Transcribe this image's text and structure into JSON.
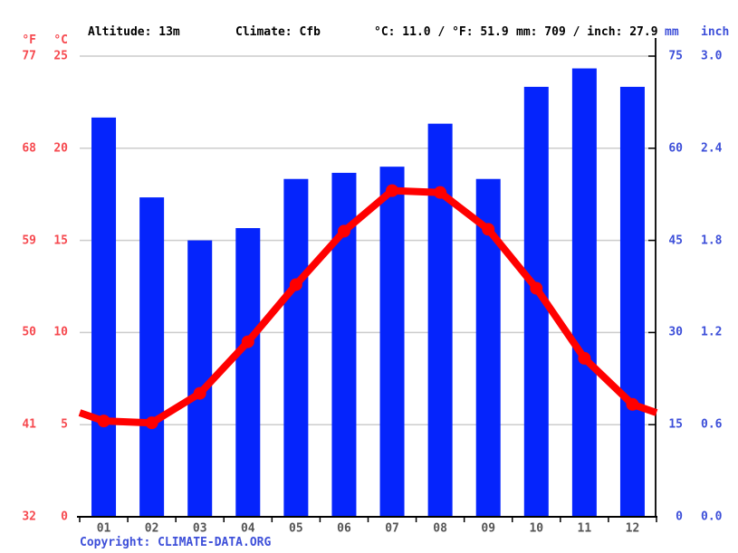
{
  "header": {
    "f_unit": "°F",
    "c_unit": "°C",
    "altitude": "Altitude: 13m",
    "climate": "Climate: Cfb",
    "temp_summary": "°C: 11.0 / °F: 51.9",
    "precip_summary": "mm: 709 / inch: 27.9",
    "mm_unit": "mm",
    "inch_unit": "inch"
  },
  "axes": {
    "left_f_ticks": [
      "77",
      "68",
      "59",
      "50",
      "41",
      "32"
    ],
    "left_c_ticks": [
      "25",
      "20",
      "15",
      "10",
      "5",
      "0"
    ],
    "right_mm_ticks": [
      "75",
      "60",
      "45",
      "30",
      "15",
      "0"
    ],
    "right_inch_ticks": [
      "3.0",
      "2.4",
      "1.8",
      "1.2",
      "0.6",
      "0.0"
    ]
  },
  "footer": {
    "copyright": "Copyright: CLIMATE-DATA.ORG"
  },
  "colors": {
    "bar_blue": "#0524fc",
    "line_red": "#ff0000",
    "red_label": "#f6494f",
    "blue_label": "#3d4fd9",
    "grid": "#cccccc",
    "axis": "#000000",
    "month_label": "#555555"
  },
  "chart_data": {
    "type": "bar+line",
    "categories": [
      "01",
      "02",
      "03",
      "04",
      "05",
      "06",
      "07",
      "08",
      "09",
      "10",
      "11",
      "12"
    ],
    "series": [
      {
        "name": "precipitation",
        "type": "bar",
        "unit": "mm",
        "values": [
          65,
          52,
          45,
          47,
          55,
          56,
          57,
          64,
          55,
          70,
          73,
          70
        ]
      },
      {
        "name": "temperature",
        "type": "line",
        "unit": "°C",
        "values": [
          5.2,
          5.1,
          6.7,
          9.5,
          12.6,
          15.5,
          17.7,
          17.6,
          15.6,
          12.4,
          8.6,
          6.1
        ]
      }
    ],
    "temp_axis_c_range": [
      0,
      25
    ],
    "temp_axis_f_range": [
      32,
      77
    ],
    "precip_axis_mm_range": [
      0,
      75
    ],
    "precip_axis_inch_range": [
      0.0,
      3.0
    ],
    "annual_mean_temp_c": 11.0,
    "annual_mean_temp_f": 51.9,
    "annual_precip_mm": 709,
    "annual_precip_inch": 27.9,
    "grid": true,
    "legend": false
  }
}
